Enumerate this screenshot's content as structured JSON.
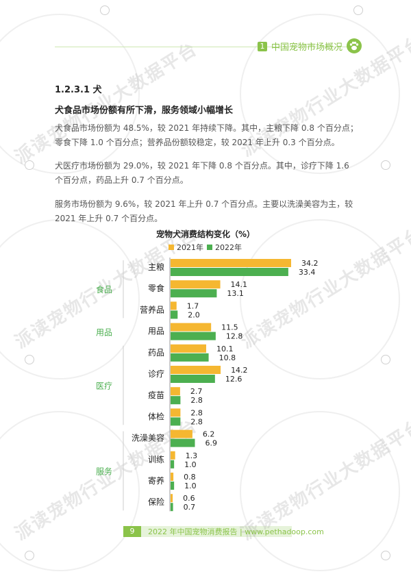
{
  "header": {
    "section_number": "1",
    "section_title": "中国宠物市场概况"
  },
  "watermark_text": "派读宠物行业大数据平台",
  "section_heading": "1.2.3.1 犬",
  "sub_heading": "犬食品市场份额有所下滑，服务领域小幅增长",
  "paragraphs": [
    "犬食品市场份额为 48.5%，较 2021 年持续下降。其中，主粮下降 0.8 个百分点；零食下降 1.0 个百分点；营养品份额较稳定，较 2021 年上升 0.3 个百分点。",
    "犬医疗市场份额为 29.0%，较 2021 年下降 0.8 个百分点。其中，诊疗下降 1.6 个百分点，药品上升 0.7 个百分点。",
    "服务市场份额为 9.6%，较 2021 年上升 0.7 个百分点。主要以洗澡美容为主，较 2021 年上升 0.7 个百分点。"
  ],
  "chart_data": {
    "type": "bar",
    "orientation": "horizontal",
    "title": "宠物犬消费结构变化（%）",
    "categories": [
      "主粮",
      "零食",
      "营养品",
      "用品",
      "药品",
      "诊疗",
      "疫苗",
      "体检",
      "洗澡美容",
      "训练",
      "寄养",
      "保险"
    ],
    "groups": [
      {
        "label": "食品",
        "categories": [
          "主粮",
          "零食",
          "营养品"
        ]
      },
      {
        "label": "用品",
        "categories": [
          "用品"
        ]
      },
      {
        "label": "医疗",
        "categories": [
          "药品",
          "诊疗",
          "疫苗",
          "体检"
        ]
      },
      {
        "label": "服务",
        "categories": [
          "洗澡美容",
          "训练",
          "寄养",
          "保险"
        ]
      }
    ],
    "series": [
      {
        "name": "2021年",
        "color": "#f5b731",
        "values": [
          34.2,
          14.1,
          1.7,
          11.5,
          10.1,
          14.2,
          2.7,
          2.8,
          6.2,
          1.3,
          0.8,
          0.6
        ]
      },
      {
        "name": "2022年",
        "color": "#4caf50",
        "values": [
          33.4,
          13.1,
          2.0,
          12.8,
          10.8,
          12.6,
          2.8,
          2.8,
          6.9,
          1.0,
          1.0,
          0.7
        ]
      }
    ],
    "legend_position": "top",
    "xlim": [
      0,
      36
    ]
  },
  "footer": {
    "page_number": "9",
    "text": "2022 年中国宠物消费报告 | www.pethadoop.com"
  },
  "colors": {
    "accent_green": "#8bc34a",
    "bar_2021": "#f5b731",
    "bar_2022": "#4caf50",
    "group_label": "#4caf50"
  }
}
